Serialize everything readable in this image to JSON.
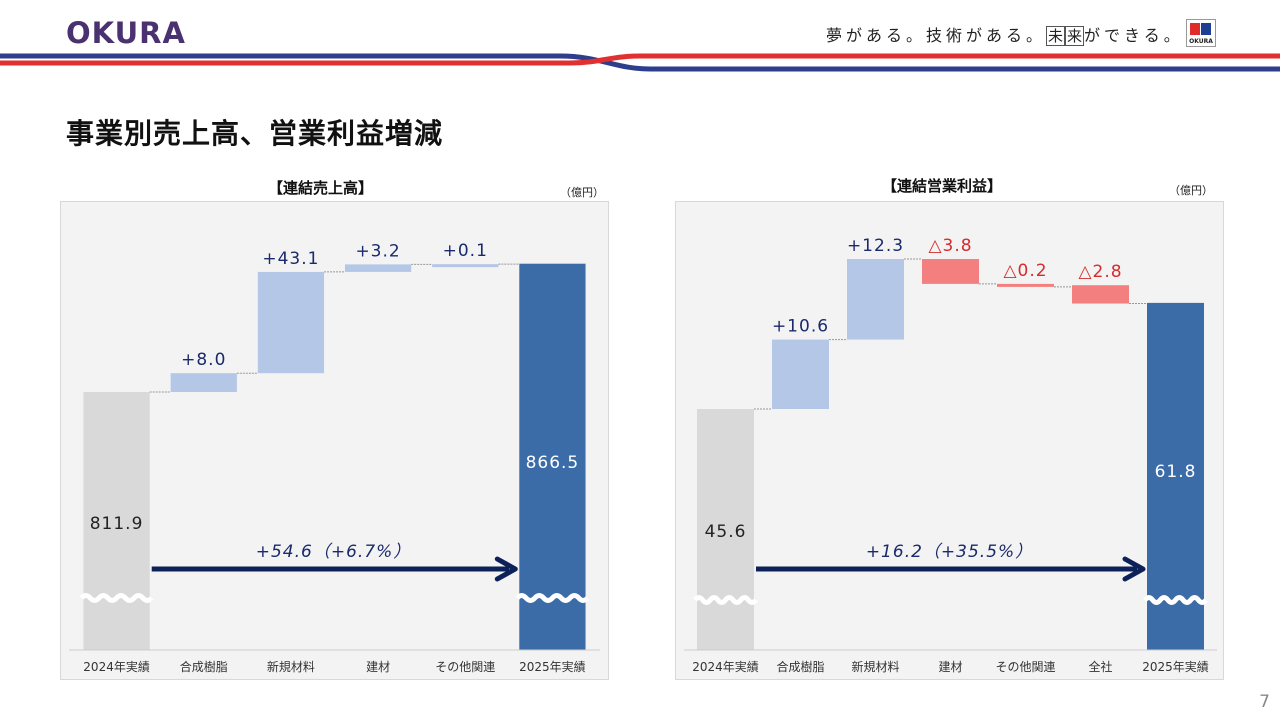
{
  "header": {
    "logo_text": "OKURA",
    "slogan_parts": [
      "夢がある。技術がある。",
      "未",
      "来",
      "ができる。"
    ],
    "corner_logo_text": "OKURA",
    "colors": {
      "navy": "#2c3e8c",
      "red": "#e03030",
      "logo": "#4a3170"
    }
  },
  "page_title": "事業別売上高、営業利益増減",
  "page_number": "7",
  "chart_data": [
    {
      "type": "waterfall",
      "title": "【連結売上高】",
      "unit": "（億円）",
      "categories": [
        "2024年実績",
        "合成樹脂",
        "新規材料",
        "建材",
        "その他関連",
        "2025年実績"
      ],
      "values": [
        811.9,
        8.0,
        43.1,
        3.2,
        0.1,
        866.5
      ],
      "bar_kinds": [
        "start",
        "increase",
        "increase",
        "increase",
        "increase",
        "end"
      ],
      "labels": [
        "811.9",
        "+8.0",
        "+43.1",
        "+3.2",
        "+0.1",
        "866.5"
      ],
      "change_label": "+54.6（+6.7%）",
      "axis_break": true,
      "colors": {
        "start": "#d9d9d9",
        "increase": "#b4c7e7",
        "decrease": "#f47f7f",
        "end": "#3c6ca8",
        "up_label": "#1a2a6c",
        "down_label": "#d62b2b",
        "arrow": "#0c2157"
      }
    },
    {
      "type": "waterfall",
      "title": "【連結営業利益】",
      "unit": "（億円）",
      "categories": [
        "2024年実績",
        "合成樹脂",
        "新規材料",
        "建材",
        "その他関連",
        "全社",
        "2025年実績"
      ],
      "values": [
        45.6,
        10.6,
        12.3,
        -3.8,
        -0.2,
        -2.8,
        61.8
      ],
      "bar_kinds": [
        "start",
        "increase",
        "increase",
        "decrease",
        "decrease",
        "decrease",
        "end"
      ],
      "labels": [
        "45.6",
        "+10.6",
        "+12.3",
        "△3.8",
        "△0.2",
        "△2.8",
        "61.8"
      ],
      "change_label": "+16.2（+35.5%）",
      "axis_break": true,
      "colors": {
        "start": "#d9d9d9",
        "increase": "#b4c7e7",
        "decrease": "#f47f7f",
        "end": "#3c6ca8",
        "up_label": "#1a2a6c",
        "down_label": "#d62b2b",
        "arrow": "#0c2157"
      }
    }
  ]
}
